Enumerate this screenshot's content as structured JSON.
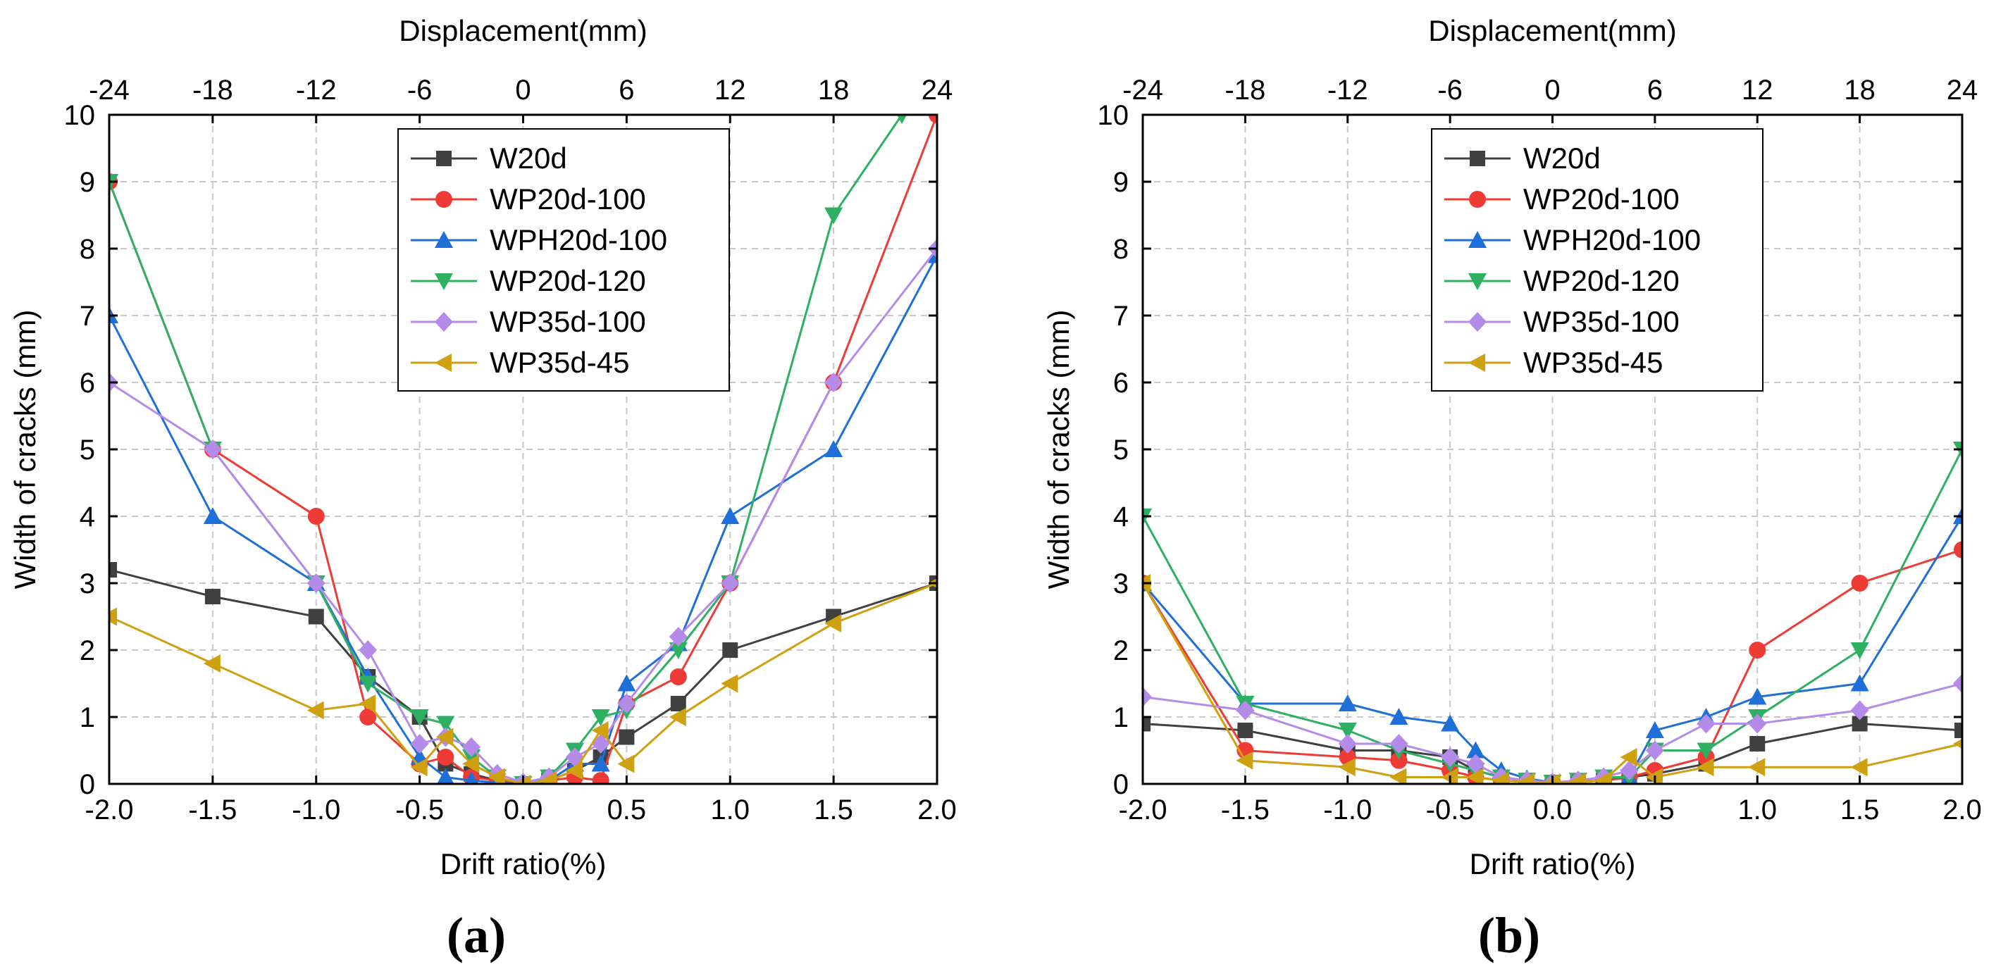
{
  "figure": {
    "panel_labels": [
      "(a)",
      "(b)"
    ]
  },
  "colors": {
    "W20d": "#404040",
    "WP20d-100": "#ef3b36",
    "WPH20d-100": "#1f6fd8",
    "WP20d-120": "#2eb062",
    "WP35d-100": "#b48be8",
    "WP35d-45": "#cfa010"
  },
  "chart_data": [
    {
      "type": "line",
      "panel": "(a)",
      "xlabel": "Drift ratio(%)",
      "x2label": "Displacement(mm)",
      "ylabel": "Width of cracks (mm)",
      "xlim": [
        -2.0,
        2.0
      ],
      "ylim": [
        0,
        10
      ],
      "xticks": [
        "-2.0",
        "-1.5",
        "-1.0",
        "-0.5",
        "0.0",
        "0.5",
        "1.0",
        "1.5",
        "2.0"
      ],
      "x2ticks": [
        "-24",
        "-18",
        "-12",
        "-6",
        "0",
        "6",
        "12",
        "18",
        "24"
      ],
      "yticks": [
        "0",
        "1",
        "2",
        "3",
        "4",
        "5",
        "6",
        "7",
        "8",
        "9",
        "10"
      ],
      "grid": true,
      "legend_position": "top-center",
      "series": [
        {
          "name": "W20d",
          "marker": "square",
          "x": [
            -2.0,
            -1.5,
            -1.0,
            -0.75,
            -0.5,
            -0.375,
            -0.25,
            -0.125,
            0.0,
            0.125,
            0.25,
            0.375,
            0.5,
            0.75,
            1.0,
            1.5,
            2.0
          ],
          "y": [
            3.2,
            2.8,
            2.5,
            1.6,
            1.0,
            0.3,
            0.15,
            0.05,
            0.0,
            0.05,
            0.2,
            0.4,
            0.7,
            1.2,
            2.0,
            2.5,
            3.0
          ]
        },
        {
          "name": "WP20d-100",
          "marker": "circle",
          "x": [
            -2.0,
            -1.5,
            -1.0,
            -0.75,
            -0.5,
            -0.375,
            -0.25,
            -0.125,
            0.0,
            0.125,
            0.25,
            0.375,
            0.5,
            0.75,
            1.0,
            1.5,
            2.0
          ],
          "y": [
            9.0,
            5.0,
            4.0,
            1.0,
            0.3,
            0.4,
            0.1,
            0.05,
            0.0,
            0.05,
            0.1,
            0.05,
            1.2,
            1.6,
            3.0,
            6.0,
            10.0
          ]
        },
        {
          "name": "WPH20d-100",
          "marker": "triangle-up",
          "x": [
            -2.0,
            -1.5,
            -1.0,
            -0.75,
            -0.5,
            -0.375,
            -0.25,
            -0.125,
            0.0,
            0.125,
            0.25,
            0.375,
            0.5,
            0.75,
            1.0,
            1.5,
            2.0
          ],
          "y": [
            7.0,
            4.0,
            3.0,
            1.6,
            0.4,
            0.1,
            0.05,
            0.02,
            0.0,
            0.05,
            0.3,
            0.3,
            1.5,
            2.1,
            4.0,
            5.0,
            7.9
          ]
        },
        {
          "name": "WP20d-120",
          "marker": "triangle-down",
          "x": [
            -2.0,
            -1.5,
            -1.0,
            -0.75,
            -0.5,
            -0.375,
            -0.25,
            -0.125,
            0.0,
            0.125,
            0.25,
            0.375,
            0.5,
            0.75,
            1.0,
            1.5,
            1.83
          ],
          "y": [
            9.0,
            5.0,
            3.0,
            1.5,
            1.0,
            0.9,
            0.4,
            0.1,
            0.0,
            0.1,
            0.5,
            1.0,
            1.1,
            2.0,
            3.0,
            8.5,
            10.0
          ]
        },
        {
          "name": "WP35d-100",
          "marker": "diamond",
          "x": [
            -2.0,
            -1.5,
            -1.0,
            -0.75,
            -0.5,
            -0.375,
            -0.25,
            -0.125,
            0.0,
            0.125,
            0.25,
            0.375,
            0.5,
            0.75,
            1.0,
            1.5,
            2.0
          ],
          "y": [
            6.0,
            5.0,
            3.0,
            2.0,
            0.6,
            0.7,
            0.55,
            0.15,
            0.02,
            0.1,
            0.4,
            0.6,
            1.2,
            2.2,
            3.0,
            6.0,
            8.0
          ]
        },
        {
          "name": "WP35d-45",
          "marker": "triangle-left",
          "x": [
            -2.0,
            -1.5,
            -1.0,
            -0.75,
            -0.5,
            -0.375,
            -0.25,
            -0.125,
            0.0,
            0.125,
            0.25,
            0.375,
            0.5,
            0.75,
            1.0,
            1.5,
            2.0
          ],
          "y": [
            2.5,
            1.8,
            1.1,
            1.2,
            0.25,
            0.7,
            0.3,
            0.1,
            0.0,
            0.05,
            0.2,
            0.8,
            0.3,
            1.0,
            1.5,
            2.4,
            3.0
          ]
        }
      ]
    },
    {
      "type": "line",
      "panel": "(b)",
      "xlabel": "Drift ratio(%)",
      "x2label": "Displacement(mm)",
      "ylabel": "Width of cracks (mm)",
      "xlim": [
        -2.0,
        2.0
      ],
      "ylim": [
        0,
        10
      ],
      "xticks": [
        "-2.0",
        "-1.5",
        "-1.0",
        "-0.5",
        "0.0",
        "0.5",
        "1.0",
        "1.5",
        "2.0"
      ],
      "x2ticks": [
        "-24",
        "-18",
        "-12",
        "-6",
        "0",
        "6",
        "12",
        "18",
        "24"
      ],
      "yticks": [
        "0",
        "1",
        "2",
        "3",
        "4",
        "5",
        "6",
        "7",
        "8",
        "9",
        "10"
      ],
      "grid": true,
      "legend_position": "top-center",
      "series": [
        {
          "name": "W20d",
          "marker": "square",
          "x": [
            -2.0,
            -1.5,
            -1.0,
            -0.75,
            -0.5,
            -0.375,
            -0.25,
            -0.125,
            0.0,
            0.125,
            0.25,
            0.375,
            0.5,
            0.75,
            1.0,
            1.5,
            2.0
          ],
          "y": [
            0.9,
            0.8,
            0.5,
            0.5,
            0.4,
            0.2,
            0.1,
            0.05,
            0.02,
            0.03,
            0.05,
            0.1,
            0.15,
            0.3,
            0.6,
            0.9,
            0.8
          ]
        },
        {
          "name": "WP20d-100",
          "marker": "circle",
          "x": [
            -2.0,
            -1.5,
            -1.0,
            -0.75,
            -0.5,
            -0.375,
            -0.25,
            -0.125,
            0.0,
            0.125,
            0.25,
            0.375,
            0.5,
            0.75,
            1.0,
            1.5,
            2.0
          ],
          "y": [
            3.0,
            0.5,
            0.4,
            0.35,
            0.2,
            0.1,
            0.05,
            0.03,
            0.02,
            0.03,
            0.05,
            0.1,
            0.2,
            0.4,
            2.0,
            3.0,
            3.5
          ]
        },
        {
          "name": "WPH20d-100",
          "marker": "triangle-up",
          "x": [
            -2.0,
            -1.5,
            -1.0,
            -0.75,
            -0.5,
            -0.375,
            -0.25,
            -0.125,
            0.0,
            0.125,
            0.25,
            0.375,
            0.5,
            0.75,
            1.0,
            1.5,
            2.0
          ],
          "y": [
            3.0,
            1.2,
            1.2,
            1.0,
            0.9,
            0.5,
            0.2,
            0.08,
            0.02,
            0.05,
            0.1,
            0.1,
            0.8,
            1.0,
            1.3,
            1.5,
            4.0
          ]
        },
        {
          "name": "WP20d-120",
          "marker": "triangle-down",
          "x": [
            -2.0,
            -1.5,
            -1.0,
            -0.75,
            -0.5,
            -0.375,
            -0.25,
            -0.125,
            0.0,
            0.125,
            0.25,
            0.375,
            0.5,
            0.75,
            1.0,
            1.5,
            2.0
          ],
          "y": [
            4.0,
            1.2,
            0.8,
            0.5,
            0.3,
            0.2,
            0.1,
            0.05,
            0.02,
            0.05,
            0.1,
            0.1,
            0.5,
            0.5,
            1.0,
            2.0,
            5.0
          ]
        },
        {
          "name": "WP35d-100",
          "marker": "diamond",
          "x": [
            -2.0,
            -1.5,
            -1.0,
            -0.75,
            -0.5,
            -0.375,
            -0.25,
            -0.125,
            0.0,
            0.125,
            0.25,
            0.375,
            0.5,
            0.75,
            1.0,
            1.5,
            2.0
          ],
          "y": [
            1.3,
            1.1,
            0.6,
            0.6,
            0.4,
            0.3,
            0.1,
            0.05,
            0.02,
            0.05,
            0.1,
            0.2,
            0.5,
            0.9,
            0.9,
            1.1,
            1.5
          ]
        },
        {
          "name": "WP35d-45",
          "marker": "triangle-left",
          "x": [
            -2.0,
            -1.5,
            -1.0,
            -0.75,
            -0.5,
            -0.375,
            -0.25,
            -0.125,
            0.0,
            0.125,
            0.25,
            0.375,
            0.5,
            0.75,
            1.0,
            1.5,
            2.0
          ],
          "y": [
            3.0,
            0.35,
            0.25,
            0.1,
            0.1,
            0.1,
            0.05,
            0.03,
            0.02,
            0.03,
            0.05,
            0.4,
            0.1,
            0.25,
            0.25,
            0.25,
            0.6
          ]
        }
      ]
    }
  ]
}
